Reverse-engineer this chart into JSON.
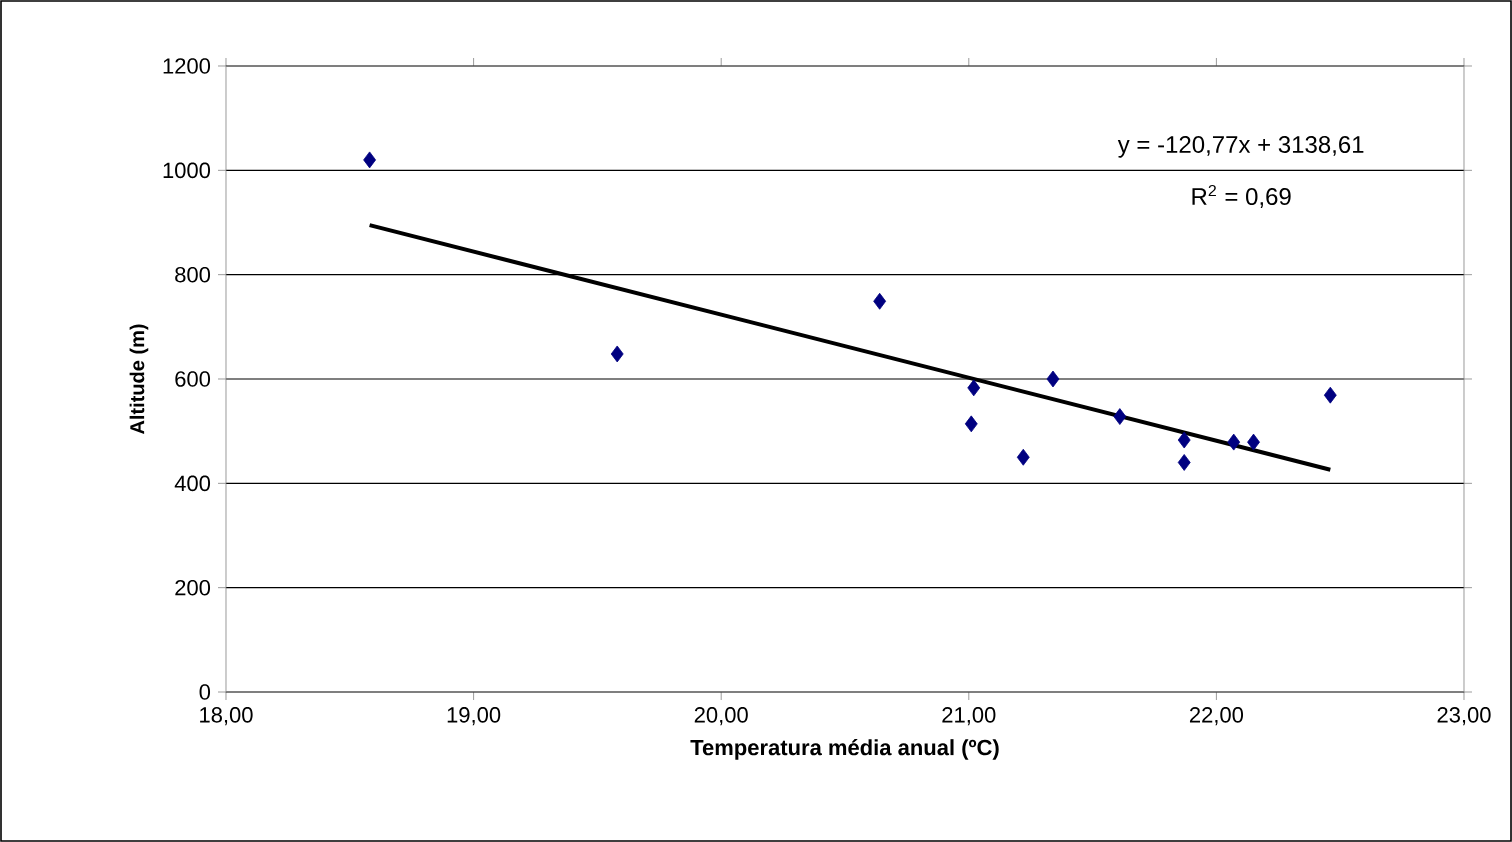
{
  "chart_data": {
    "type": "scatter",
    "xlabel": "Temperatura média anual (ºC)",
    "ylabel": "Altitude (m)",
    "xlim": [
      18,
      23
    ],
    "ylim": [
      0,
      1200
    ],
    "xticks": [
      {
        "value": 18,
        "label": "18,00"
      },
      {
        "value": 19,
        "label": "19,00"
      },
      {
        "value": 20,
        "label": "20,00"
      },
      {
        "value": 21,
        "label": "21,00"
      },
      {
        "value": 22,
        "label": "22,00"
      },
      {
        "value": 23,
        "label": "23,00"
      }
    ],
    "yticks": [
      0,
      200,
      400,
      600,
      800,
      1000,
      1200
    ],
    "grid": "y",
    "series": [
      {
        "color": "#000080",
        "marker": "diamond",
        "x": [
          18.58,
          19.58,
          20.64,
          21.02,
          21.01,
          21.22,
          21.34,
          21.61,
          21.87,
          21.87,
          22.07,
          22.15,
          22.46
        ],
        "values": [
          1020,
          648,
          749,
          583,
          514,
          450,
          600,
          528,
          483,
          440,
          479,
          479,
          569
        ]
      },
      {
        "type": "line",
        "marker": "none",
        "color": "#000000",
        "x": [
          18.58,
          22.46
        ],
        "values": [
          895,
          426
        ]
      }
    ],
    "annotations": [
      "y = -120,77x + 3138,61",
      "R$^{2}$ = 0,69"
    ]
  }
}
